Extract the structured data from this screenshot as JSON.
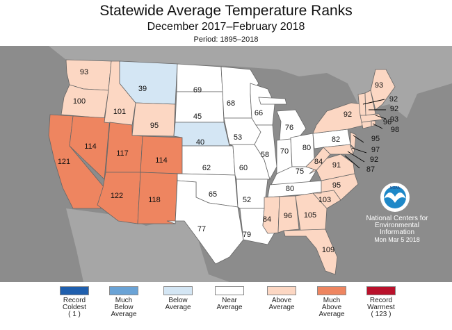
{
  "header": {
    "title": "Statewide Average Temperature Ranks",
    "subtitle": "December 2017–February 2018",
    "period": "Period: 1895–2018"
  },
  "colors": {
    "background_gray": "#8c8c8c",
    "record_coldest": "#1f5fae",
    "much_below": "#6aa3d6",
    "below": "#d4e6f4",
    "near": "#ffffff",
    "above": "#fcd7c3",
    "much_above": "#ee8560",
    "record_warmest": "#b9112b"
  },
  "map": {
    "ranks": {
      "WA": "93",
      "OR": "100",
      "CA": "121",
      "ID": "101",
      "NV": "114",
      "MT": "39",
      "WY": "95",
      "UT": "117",
      "AZ": "122",
      "CO": "114",
      "NM": "118",
      "ND": "69",
      "SD": "45",
      "NE": "40",
      "KS": "62",
      "OK": "65",
      "TX": "77",
      "MN": "68",
      "IA": "53",
      "MO": "60",
      "AR": "52",
      "LA": "79",
      "WI": "66",
      "IL": "58",
      "MI": "76",
      "IN": "70",
      "OH": "80",
      "KY": "75",
      "TN": "80",
      "MS": "84",
      "AL": "96",
      "GA": "105",
      "FL": "109",
      "SC": "103",
      "NC": "95",
      "VA": "91",
      "WV": "84",
      "PA": "82",
      "NY": "92",
      "ME": "93",
      "NH": "92",
      "VT": "92",
      "MA": "93",
      "RI": "96",
      "CT": "98",
      "NJ": "95",
      "DE": "97",
      "MD": "92",
      "DC": "87"
    },
    "noaa": {
      "logo_text": "NOAA",
      "line1": "National Centers for",
      "line2": "Environmental",
      "line3": "Information",
      "date": "Mon Mar  5 2018"
    }
  },
  "legend": [
    {
      "line1": "Record",
      "line2": "Coldest",
      "line3": "( 1 )",
      "color": "#1f5fae"
    },
    {
      "line1": "Much",
      "line2": "Below",
      "line3": "Average",
      "color": "#6aa3d6"
    },
    {
      "line1": "Below",
      "line2": "Average",
      "line3": "",
      "color": "#d4e6f4"
    },
    {
      "line1": "Near",
      "line2": "Average",
      "line3": "",
      "color": "#ffffff"
    },
    {
      "line1": "Above",
      "line2": "Average",
      "line3": "",
      "color": "#fcd7c3"
    },
    {
      "line1": "Much",
      "line2": "Above",
      "line3": "Average",
      "color": "#ee8560"
    },
    {
      "line1": "Record",
      "line2": "Warmest",
      "line3": "( 123 )",
      "color": "#b9112b"
    }
  ]
}
